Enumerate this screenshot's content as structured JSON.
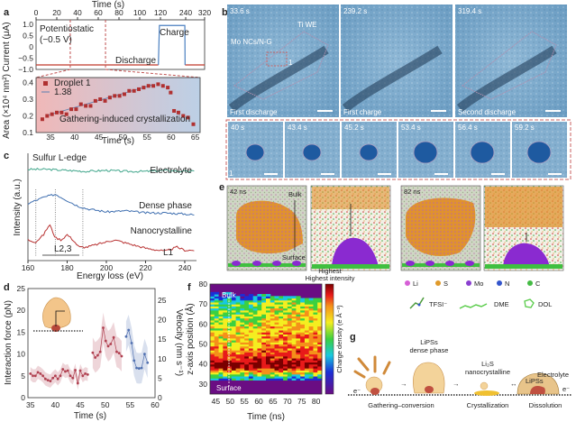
{
  "panels": {
    "a": {
      "label": "a",
      "top_xlabel": "Time (s)",
      "top_ylabel": "Current (μA)",
      "annot_potentiostatic": "Potentiostatic",
      "annot_voltage": "(−0.5 V)",
      "annot_discharge": "Discharge",
      "annot_charge": "Charge",
      "bottom_ylabel": "Area (×10⁴ nm²)",
      "bottom_xlabel": "Time (s)",
      "legend_droplet": "Droplet 1",
      "legend_slope": "1.38",
      "annot_gathering": "Gathering-induced crystallization"
    },
    "b": {
      "label": "b",
      "top_images": [
        {
          "time": "33.6 s",
          "caption": "First discharge",
          "annot1": "Ti WE",
          "annot2": "Mo NCs/N-G",
          "annot3": "1"
        },
        {
          "time": "239.2 s",
          "caption": "First charge"
        },
        {
          "time": "319.4 s",
          "caption": "Second discharge"
        }
      ],
      "bottom_times": [
        "40 s",
        "43.4 s",
        "45.2 s",
        "53.4 s",
        "56.4 s",
        "59.2 s"
      ],
      "bottom_marker": "1"
    },
    "c": {
      "label": "c",
      "title": "Sulfur L-edge",
      "ylabel": "Intensity (a.u.)",
      "xlabel": "Energy loss (eV)",
      "series_labels": [
        "Electrolyte",
        "Dense phase",
        "Nanocrystalline"
      ],
      "annot_l23": "L2,3",
      "annot_l1": "L1"
    },
    "d": {
      "label": "d",
      "ylabel_left": "Interaction force (pN)",
      "ylabel_right": "Velocity (nm s⁻¹)",
      "xlabel": "Time (s)"
    },
    "e": {
      "label": "e",
      "time1": "42 ns",
      "time2": "82 ns",
      "annot_bulk": "Bulk",
      "annot_surface": "Surface",
      "legend_atoms": [
        {
          "name": "Li",
          "color": "#d65fd6"
        },
        {
          "name": "S",
          "color": "#e09a2a"
        },
        {
          "name": "Mo",
          "color": "#8a3fd0"
        },
        {
          "name": "N",
          "color": "#3355cc"
        },
        {
          "name": "C",
          "color": "#44bb44"
        }
      ],
      "legend_molecules": [
        "TFSI⁻",
        "DME",
        "DOL"
      ]
    },
    "f": {
      "label": "f",
      "ylabel": "z-axis position (Å)",
      "xlabel": "Time (ns)",
      "annot_bulk": "Bulk",
      "annot_surface": "Surface",
      "colorbar_title": "Highest intensity",
      "colorbar_label": "Charge density (e Å⁻³)"
    },
    "g": {
      "label": "g",
      "stages": [
        "Gathering–conversion",
        "Crystallization",
        "Dissolution"
      ],
      "annot_dense": "LiPSs",
      "annot_dense2": "dense phase",
      "annot_li2s": "Li₂S",
      "annot_nano": "nanocrystalline",
      "annot_electrolyte": "Electrolyte",
      "annot_lipss": "LiPSs",
      "electron": "e⁻"
    }
  },
  "chart_data": [
    {
      "panel": "a-top",
      "type": "line",
      "xlabel": "Time (s)",
      "ylabel": "Current (μA)",
      "x_ticks": [
        "0",
        "20",
        "40",
        "60",
        "80",
        "100",
        "120",
        "240",
        "320"
      ],
      "y_ticks": [
        "1.0",
        "0.5",
        "0",
        "−0.5",
        "−1.0"
      ],
      "ylim": [
        -1.0,
        1.2
      ],
      "x": [
        0,
        118,
        119,
        236,
        237,
        320
      ],
      "y": [
        -0.8,
        -0.8,
        0.95,
        0.95,
        -0.8,
        -0.8
      ],
      "dashed_markers": [
        33,
        67
      ],
      "colors": {
        "discharge": "#c0392b",
        "charge": "#4a7fc0"
      }
    },
    {
      "panel": "a-bottom",
      "type": "scatter",
      "xlabel": "Time (s)",
      "ylabel": "Area (×10⁴ nm²)",
      "x_ticks": [
        35,
        40,
        45,
        50,
        55,
        60,
        65
      ],
      "y_ticks": [
        0.1,
        0.2,
        0.3,
        0.4
      ],
      "xlim": [
        32,
        66
      ],
      "ylim": [
        0.1,
        0.43
      ],
      "series": [
        {
          "name": "Droplet 1",
          "x": [
            33.3,
            34.3,
            35.3,
            36.3,
            37.3,
            38.3,
            39.3,
            40.3,
            41.3,
            42.3,
            43.3,
            44.3,
            45.3,
            46.3,
            47.3,
            48.3,
            49.3,
            50.3,
            51.3,
            52.3,
            53.3,
            54.3,
            55.3,
            56.3,
            57.3,
            58.3,
            59.3,
            59.9,
            60.6,
            61.5,
            62.5,
            63.5,
            64.6
          ],
          "y": [
            0.18,
            0.2,
            0.21,
            0.22,
            0.22,
            0.21,
            0.24,
            0.24,
            0.27,
            0.26,
            0.26,
            0.29,
            0.3,
            0.29,
            0.31,
            0.32,
            0.32,
            0.33,
            0.35,
            0.35,
            0.36,
            0.37,
            0.38,
            0.38,
            0.39,
            0.38,
            0.37,
            0.34,
            0.23,
            0.22,
            0.2,
            0.19,
            0.15
          ]
        }
      ],
      "fit_slope": "1.38"
    },
    {
      "panel": "c",
      "type": "line",
      "xlabel": "Energy loss (eV)",
      "ylabel": "Intensity (a.u.)",
      "x_ticks": [
        160,
        180,
        200,
        220,
        240
      ],
      "xlim": [
        160,
        246
      ],
      "reference_lines": [
        164,
        174,
        188
      ],
      "series": [
        {
          "name": "Electrolyte",
          "color": "#3fa58a",
          "x": [
            160,
            170,
            180,
            190,
            200,
            210,
            220,
            230,
            240,
            245
          ],
          "y": [
            0.88,
            0.88,
            0.87,
            0.86,
            0.87,
            0.86,
            0.86,
            0.87,
            0.86,
            0.86
          ]
        },
        {
          "name": "Dense phase",
          "color": "#3f6fb0",
          "x": [
            160,
            164,
            168,
            174,
            180,
            185,
            190,
            200,
            210,
            220,
            230,
            240,
            245
          ],
          "y": [
            0.55,
            0.58,
            0.61,
            0.64,
            0.58,
            0.53,
            0.5,
            0.47,
            0.48,
            0.46,
            0.46,
            0.45,
            0.44
          ]
        },
        {
          "name": "Nanocrystalline",
          "color": "#b83232",
          "x": [
            160,
            164,
            168,
            171,
            174,
            177,
            180,
            183,
            186,
            190,
            200,
            204,
            210,
            220,
            230,
            236,
            240,
            245
          ],
          "y": [
            0.2,
            0.18,
            0.25,
            0.35,
            0.22,
            0.2,
            0.25,
            0.2,
            0.13,
            0.13,
            0.18,
            0.2,
            0.17,
            0.12,
            0.09,
            0.13,
            0.1,
            0.1
          ]
        }
      ]
    },
    {
      "panel": "d",
      "type": "line",
      "xlabel": "Time (s)",
      "ylabel": "Interaction force (pN)",
      "ylabel_right": "Velocity (nm s⁻¹)",
      "x_ticks": [
        35,
        40,
        45,
        50,
        55,
        60
      ],
      "y_ticks": [
        0,
        5,
        10,
        15,
        20,
        25
      ],
      "y_right_ticks": [
        0,
        5,
        10,
        15,
        20,
        25
      ],
      "xlim": [
        34.5,
        60
      ],
      "ylim": [
        0,
        25
      ],
      "ylim_right": [
        0,
        28
      ],
      "series": [
        {
          "color": "#b04050",
          "x": [
            35,
            35.5,
            36,
            36.5,
            37,
            37.5,
            38,
            38.5,
            39,
            39.5,
            40,
            40.5,
            41,
            41.5,
            42,
            42.5,
            43,
            43.5,
            44,
            44.5,
            45,
            45.5,
            46,
            46.5
          ],
          "y": [
            5.5,
            5.0,
            5.0,
            5.8,
            5.5,
            5.0,
            4.3,
            4.0,
            3.8,
            4.5,
            5.0,
            4.3,
            5.0,
            6.5,
            6.0,
            6.2,
            5.0,
            4.5,
            6.3,
            3.3,
            6.2,
            5.0,
            5.5,
            5.3
          ]
        },
        {
          "color": "#b04050",
          "x": [
            47.5,
            48,
            48.5,
            49,
            49.6,
            50.1,
            50.6,
            51.1,
            51.7,
            52.3,
            52.8,
            53.3
          ],
          "y": [
            10.3,
            9.2,
            9.7,
            10.5,
            16.0,
            13.0,
            11.8,
            12.3,
            13.8,
            10.5,
            10.2,
            9.5
          ]
        },
        {
          "color": "#5070b0",
          "x": [
            54.2,
            54.7,
            55.3,
            55.8,
            56.3,
            56.8,
            57.3,
            57.9,
            58.5
          ],
          "y": [
            14.0,
            15.5,
            12.5,
            8.5,
            6.8,
            6.7,
            6.8,
            10.0,
            8.0
          ]
        }
      ]
    },
    {
      "panel": "f",
      "type": "heatmap",
      "xlabel": "Time (ns)",
      "ylabel": "z-axis position (Å)",
      "x_ticks": [
        45,
        50,
        55,
        60,
        65,
        70,
        75,
        80
      ],
      "y_ticks": [
        30,
        40,
        50,
        60,
        70,
        80
      ],
      "xlim": [
        43,
        82
      ],
      "ylim": [
        25,
        80
      ],
      "z_positions": [
        30,
        34,
        38,
        40,
        42,
        46,
        50,
        54,
        58,
        62,
        66,
        70,
        74
      ],
      "relative_density": [
        0.0,
        0.45,
        0.95,
        1.0,
        0.9,
        0.7,
        0.6,
        0.65,
        0.55,
        0.5,
        0.45,
        0.4,
        0.15
      ],
      "colormap": [
        "#6a0d83",
        "#1b2fd6",
        "#18c8e0",
        "#3cd040",
        "#f5ee20",
        "#f5901a",
        "#e81a1a",
        "#7a0000"
      ]
    }
  ]
}
